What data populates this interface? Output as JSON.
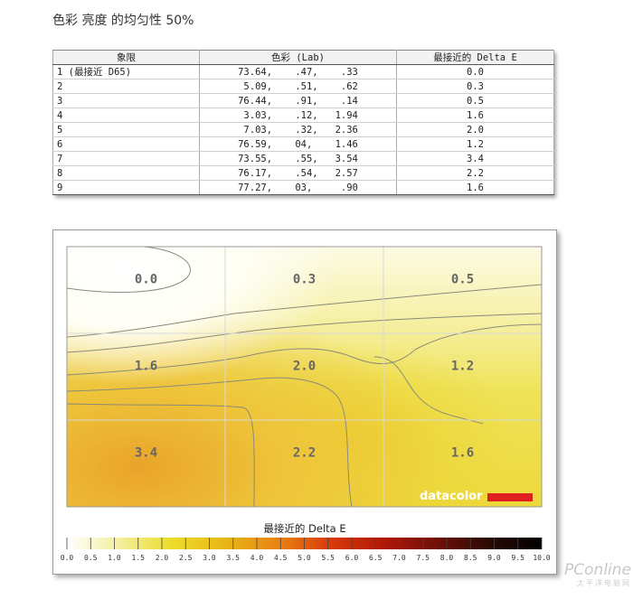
{
  "title": "色彩 亮度 的均匀性 50%",
  "table": {
    "headers": [
      "象限",
      "色彩 (Lab)",
      "最接近的 Delta E"
    ],
    "rows": [
      {
        "quadrant": "1 (最接近 D65)",
        "lab": "73.64,    .47,    .33",
        "de": "0.0"
      },
      {
        "quadrant": "2",
        "lab": " 5.09,    .51,    .62",
        "de": "0.3"
      },
      {
        "quadrant": "3",
        "lab": "76.44,    .91,    .14",
        "de": "0.5"
      },
      {
        "quadrant": "4",
        "lab": " 3.03,    .12,   1.94",
        "de": "1.6"
      },
      {
        "quadrant": "5",
        "lab": " 7.03,    .32,   2.36",
        "de": "2.0"
      },
      {
        "quadrant": "6",
        "lab": "76.59,    04,    1.46",
        "de": "1.2"
      },
      {
        "quadrant": "7",
        "lab": "73.55,    .55,   3.54",
        "de": "3.4"
      },
      {
        "quadrant": "8",
        "lab": "76.17,    .54,   2.57",
        "de": "2.2"
      },
      {
        "quadrant": "9",
        "lab": "77.27,    03,     .90",
        "de": "1.6"
      }
    ]
  },
  "chart_data": {
    "type": "heatmap",
    "grid_rows": 3,
    "grid_cols": 3,
    "values": [
      [
        0.0,
        0.3,
        0.5
      ],
      [
        1.6,
        2.0,
        1.2
      ],
      [
        3.4,
        2.2,
        1.6
      ]
    ],
    "cell_labels": [
      [
        "0.0",
        "0.3",
        "0.5"
      ],
      [
        "1.6",
        "2.0",
        "1.2"
      ],
      [
        "3.4",
        "2.2",
        "1.6"
      ]
    ],
    "legend_title": "最接近的 Delta E",
    "legend_ticks": [
      "0.0",
      "0.5",
      "1.0",
      "1.5",
      "2.0",
      "2.5",
      "3.0",
      "3.5",
      "4.0",
      "4.5",
      "5.0",
      "5.5",
      "6.0",
      "6.5",
      "7.0",
      "7.5",
      "8.0",
      "8.5",
      "9.0",
      "9.5",
      "10.0"
    ],
    "legend_range": [
      0,
      10
    ],
    "legend_colors": [
      "#ffffff",
      "#f4ee9c",
      "#ecdc2a",
      "#e8b616",
      "#e88412",
      "#d83a0a",
      "#b01808",
      "#701008",
      "#2a0a04",
      "#000000"
    ],
    "grid": true
  },
  "brand": {
    "logo_text": "datacolor",
    "accent": "#e02020"
  },
  "watermark": {
    "main": "PConline",
    "sub": "太平洋电脑网"
  }
}
